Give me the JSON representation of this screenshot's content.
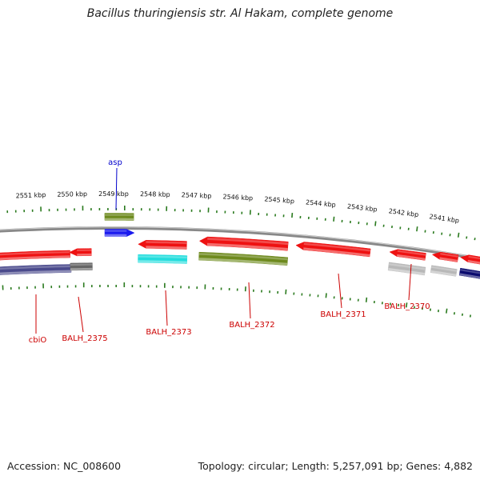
{
  "title": "Bacillus thuringiensis str. Al Hakam, complete genome",
  "footer": {
    "accession": "Accession: NC_008600",
    "topology": "Topology: circular; Length: 5,257,091 bp; Genes: 4,882"
  },
  "colors": {
    "forward_tick": "#2a7a1e",
    "reverse_tick": "#2a7a1e",
    "backbone": "#888888",
    "label_red": "#cc0000",
    "label_blue": "#0000cc",
    "red_gene": "#ee1111",
    "olive_gene": "#6e8a1e",
    "blue_gene": "#1a1aee",
    "cyan_gene": "#22dddd",
    "purple_gene": "#4a4a8c",
    "gray_gene": "#666666",
    "lightgray_gene": "#b8b8b8",
    "navy_gene": "#0a0a6e"
  },
  "kbp_labels": [
    "2551 kbp",
    "2550 kbp",
    "2549 kbp",
    "2548 kbp",
    "2547 kbp",
    "2546 kbp",
    "2545 kbp",
    "2544 kbp",
    "2543 kbp",
    "2542 kbp",
    "2541 kbp"
  ],
  "gene_labels": [
    "asp",
    "cbiO",
    "BALH_2375",
    "BALH_2373",
    "BALH_2372",
    "BALH_2371",
    "BALH_2370"
  ]
}
